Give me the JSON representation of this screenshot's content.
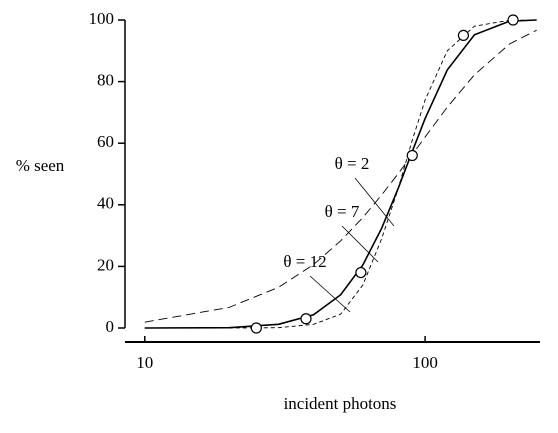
{
  "chart_data": {
    "type": "line",
    "x_label": "incident photons",
    "y_label": "% seen",
    "xscale": "log",
    "xlim": [
      8.5,
      257
    ],
    "xticks": [
      10,
      100
    ],
    "ylim": [
      0,
      100
    ],
    "yticks": [
      0,
      20,
      40,
      60,
      80,
      100
    ],
    "x": [
      10,
      20,
      30,
      40,
      50,
      60,
      70,
      80,
      90,
      100,
      120,
      150,
      200,
      250
    ],
    "series": [
      {
        "name": "θ = 2",
        "color": "#000000",
        "linestyle": "dashed",
        "values": [
          1.9,
          6.7,
          13.2,
          20.6,
          28.3,
          35.9,
          43.2,
          50.0,
          56.3,
          62.0,
          71.7,
          82.2,
          92.2,
          96.7
        ]
      },
      {
        "name": "θ = 7",
        "color": "#000000",
        "linestyle": "solid",
        "values": [
          0,
          0.1,
          1.2,
          4.3,
          10.8,
          20.5,
          32.4,
          45.1,
          57.3,
          68.0,
          83.8,
          95.2,
          99.6,
          100
        ]
      },
      {
        "name": "θ = 12",
        "color": "#000000",
        "linestyle": "dotted",
        "values": [
          0,
          0,
          0.1,
          1.2,
          4.5,
          14,
          29,
          45,
          61,
          74,
          90,
          98,
          99.9,
          100
        ]
      }
    ],
    "points": {
      "x": [
        25,
        37.6,
        59,
        90,
        137,
        206
      ],
      "values": [
        0,
        3,
        18,
        56,
        95,
        100
      ]
    }
  }
}
